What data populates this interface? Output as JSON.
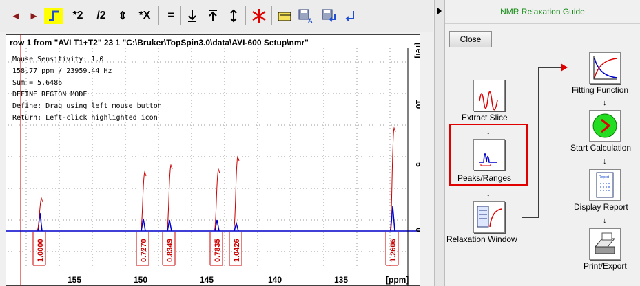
{
  "toolbar": {
    "buttons": [
      {
        "name": "scroll-left-button",
        "glyph": "◄"
      },
      {
        "name": "scroll-right-button",
        "glyph": "►"
      },
      {
        "name": "integrate-mode-button",
        "glyph": "ʃ"
      },
      {
        "name": "multiply-2-button",
        "glyph": "*2"
      },
      {
        "name": "divide-2-button",
        "glyph": "/2"
      },
      {
        "name": "scale-updown-button",
        "glyph": "⇕"
      },
      {
        "name": "multiply-x-button",
        "glyph": "*X"
      },
      {
        "name": "equal-button",
        "glyph": "="
      },
      {
        "name": "lower-bias-button",
        "glyph": "⭳"
      },
      {
        "name": "raise-top-button",
        "glyph": "⭱"
      },
      {
        "name": "expand-button",
        "glyph": "⇕"
      },
      {
        "name": "delete-region-button",
        "glyph": "✱"
      }
    ]
  },
  "spectrum": {
    "title": "row 1 from \"AVI T1+T2\"  23  1  \"C:\\Bruker\\TopSpin3.0\\data\\AVI-600 Setup\\nmr\"",
    "info_lines": [
      "Mouse Sensitivity: 1.0",
      "158.77 ppm / 23959.44 Hz",
      "Sum = 5.6486",
      "DEFINE REGION MODE",
      "Define: Drag using left mouse button",
      "Return: Left-click highlighted icon"
    ],
    "y_unit": "[rel]",
    "x_unit": "[ppm]",
    "x_ticks": [
      "155",
      "150",
      "145",
      "140",
      "135"
    ],
    "y_ticks": [
      "10",
      "5",
      "0"
    ],
    "integrals": [
      "1.0000",
      "0.7270",
      "0.8349",
      "0.7835",
      "1.0426",
      "1.2606"
    ]
  },
  "guide": {
    "title": "NMR Relaxation Guide",
    "close_label": "Close",
    "steps_left": [
      {
        "label": "Extract Slice",
        "icon": "extract-slice-icon"
      },
      {
        "label": "Peaks/Ranges",
        "icon": "peaks-ranges-icon"
      },
      {
        "label": "Relaxation Window",
        "icon": "relaxation-window-icon"
      }
    ],
    "steps_right": [
      {
        "label": "Fitting Function",
        "icon": "fitting-function-icon"
      },
      {
        "label": "Start Calculation",
        "icon": "start-calculation-icon"
      },
      {
        "label": "Display Report",
        "icon": "display-report-icon"
      },
      {
        "label": "Print/Export",
        "icon": "print-export-icon"
      }
    ],
    "arrow": "↓",
    "icon_texts": {
      "report": "Report"
    }
  },
  "colors": {
    "accent_red": "#e00000",
    "spectrum_blue": "#0000cc",
    "integral_red": "#cc0000",
    "guide_title": "#128a12"
  }
}
